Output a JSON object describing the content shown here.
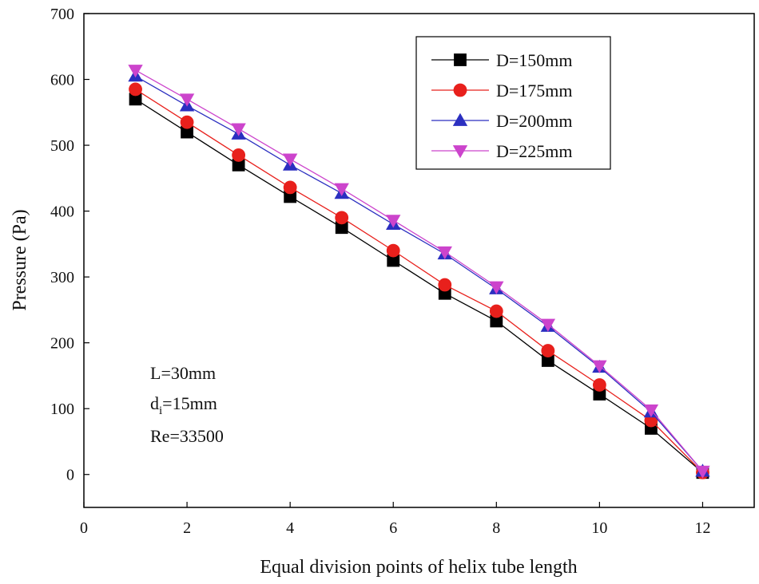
{
  "chart_data": {
    "type": "line",
    "xlabel": "Equal division points of helix tube length",
    "ylabel": "Pressure (Pa)",
    "xlim": [
      0,
      13
    ],
    "ylim": [
      -50,
      700
    ],
    "xticks": [
      0,
      2,
      4,
      6,
      8,
      10,
      12
    ],
    "yticks": [
      0,
      100,
      200,
      300,
      400,
      500,
      600,
      700
    ],
    "x": [
      1,
      2,
      3,
      4,
      5,
      6,
      7,
      8,
      9,
      10,
      11,
      12
    ],
    "legend_position": "top-right",
    "series": [
      {
        "name": "D=150mm",
        "marker": "square",
        "color": "#000000",
        "values": [
          570,
          520,
          470,
          422,
          375,
          325,
          275,
          233,
          173,
          122,
          70,
          3
        ]
      },
      {
        "name": "D=175mm",
        "marker": "circle",
        "color": "#e8201c",
        "values": [
          585,
          535,
          485,
          436,
          390,
          340,
          288,
          248,
          188,
          136,
          82,
          3
        ]
      },
      {
        "name": "D=200mm",
        "marker": "triangle-up",
        "color": "#2b2fc0",
        "values": [
          605,
          560,
          517,
          470,
          427,
          380,
          335,
          282,
          225,
          163,
          95,
          5
        ]
      },
      {
        "name": "D=225mm",
        "marker": "triangle-down",
        "color": "#cc44cc",
        "values": [
          614,
          570,
          525,
          479,
          434,
          386,
          338,
          285,
          228,
          165,
          98,
          5
        ]
      }
    ],
    "annotations": {
      "line1": "L=30mm",
      "line2_main": "d",
      "line2_sub": "i",
      "line2_rest": "=15mm",
      "line3": "Re=33500"
    }
  }
}
